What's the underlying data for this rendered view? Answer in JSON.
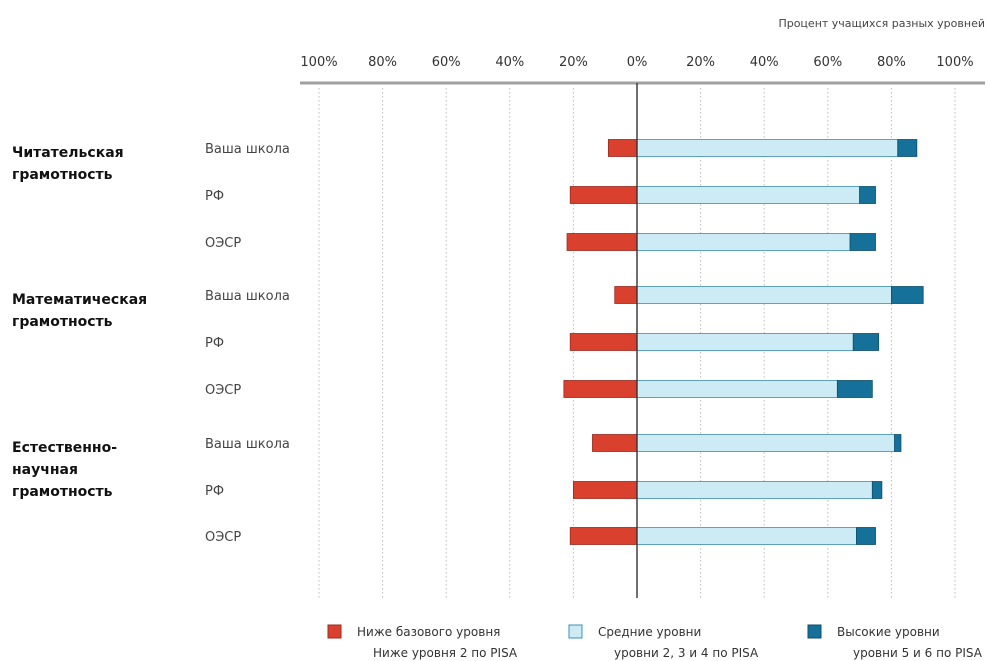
{
  "chart_data": {
    "type": "bar",
    "orientation": "horizontal-diverging",
    "title": "Процент учащихся разных уровней",
    "x_tick_labels": [
      "100%",
      "80%",
      "60%",
      "40%",
      "20%",
      "0%",
      "20%",
      "40%",
      "60%",
      "80%",
      "100%"
    ],
    "xlim": [
      -100,
      100
    ],
    "grid": true,
    "groups": [
      {
        "name": "Читательская грамотность",
        "name_lines": [
          "Читательская",
          "грамотность"
        ],
        "rows": [
          {
            "label": "Ваша школа",
            "below": 9,
            "middle": 82,
            "high": 6
          },
          {
            "label": "РФ",
            "below": 21,
            "middle": 70,
            "high": 5
          },
          {
            "label": "ОЭСР",
            "below": 22,
            "middle": 67,
            "high": 8
          }
        ]
      },
      {
        "name": "Математическая грамотность",
        "name_lines": [
          "Математическая",
          "грамотность"
        ],
        "rows": [
          {
            "label": "Ваша школа",
            "below": 7,
            "middle": 80,
            "high": 10
          },
          {
            "label": "РФ",
            "below": 21,
            "middle": 68,
            "high": 8
          },
          {
            "label": "ОЭСР",
            "below": 23,
            "middle": 63,
            "high": 11
          }
        ]
      },
      {
        "name": "Естественно-научная грамотность",
        "name_lines": [
          "Естественно-",
          "научная",
          "грамотность"
        ],
        "rows": [
          {
            "label": "Ваша школа",
            "below": 14,
            "middle": 81,
            "high": 2
          },
          {
            "label": "РФ",
            "below": 20,
            "middle": 74,
            "high": 3
          },
          {
            "label": "ОЭСР",
            "below": 21,
            "middle": 69,
            "high": 6
          }
        ]
      }
    ],
    "series": [
      {
        "key": "below",
        "name": "Ниже базового уровня",
        "subtitle": "Ниже уровня 2 по PISA",
        "color": "#d9412e"
      },
      {
        "key": "middle",
        "name": "Средние уровни",
        "subtitle": "уровни 2, 3 и 4 по PISA",
        "color": "#cdebf5"
      },
      {
        "key": "high",
        "name": "Высокие уровни",
        "subtitle": "уровни 5 и 6 по PISA",
        "color": "#16719a"
      }
    ],
    "legend_position": "bottom"
  }
}
